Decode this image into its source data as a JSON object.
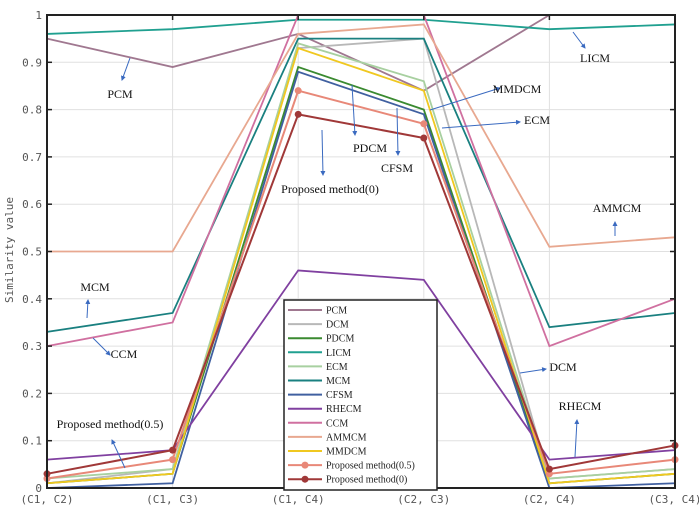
{
  "chart_data": {
    "type": "line",
    "title": "",
    "xlabel": "",
    "ylabel": "Similarity value",
    "categories": [
      "(C1, C2)",
      "(C1, C3)",
      "(C1, C4)",
      "(C2, C3)",
      "(C2, C4)",
      "(C3, C4)"
    ],
    "ylim": [
      0,
      1
    ],
    "yticks": [
      "0",
      "0.1",
      "0.2",
      "0.3",
      "0.4",
      "0.5",
      "0.6",
      "0.7",
      "0.8",
      "0.9",
      "1"
    ],
    "grid": true,
    "legend_placement": "bottom-center",
    "series": [
      {
        "name": "PCM",
        "color": "#a07890",
        "marker": false,
        "values": [
          0.95,
          0.89,
          0.96,
          0.84,
          1.0,
          1.0
        ]
      },
      {
        "name": "DCM",
        "color": "#b8b8b8",
        "marker": false,
        "values": [
          0.01,
          0.04,
          0.93,
          0.95,
          0.02,
          0.04
        ]
      },
      {
        "name": "PDCM",
        "color": "#3a8a30",
        "marker": false,
        "values": [
          0.01,
          0.03,
          0.89,
          0.8,
          0.01,
          0.03
        ]
      },
      {
        "name": "LICM",
        "color": "#20a090",
        "marker": false,
        "values": [
          0.96,
          0.97,
          0.99,
          0.99,
          0.97,
          0.98
        ]
      },
      {
        "name": "ECM",
        "color": "#a8d0a0",
        "marker": false,
        "values": [
          0.02,
          0.04,
          0.94,
          0.86,
          0.02,
          0.04
        ]
      },
      {
        "name": "MCM",
        "color": "#1a8080",
        "marker": false,
        "values": [
          0.33,
          0.37,
          0.95,
          0.95,
          0.34,
          0.37
        ]
      },
      {
        "name": "CFSM",
        "color": "#4060a0",
        "marker": false,
        "values": [
          0.0,
          0.01,
          0.88,
          0.79,
          0.0,
          0.01
        ]
      },
      {
        "name": "RHECM",
        "color": "#8040a0",
        "marker": false,
        "values": [
          0.06,
          0.08,
          0.46,
          0.44,
          0.06,
          0.08
        ]
      },
      {
        "name": "CCM",
        "color": "#d070a0",
        "marker": false,
        "values": [
          0.3,
          0.35,
          1.0,
          1.0,
          0.3,
          0.4
        ]
      },
      {
        "name": "AMMCM",
        "color": "#e8a890",
        "marker": false,
        "values": [
          0.5,
          0.5,
          0.96,
          0.98,
          0.51,
          0.53
        ]
      },
      {
        "name": "MMDCM",
        "color": "#f0c820",
        "marker": false,
        "values": [
          0.01,
          0.03,
          0.93,
          0.84,
          0.01,
          0.03
        ]
      },
      {
        "name": "Proposed method(0.5)",
        "color": "#e88878",
        "marker": true,
        "values": [
          0.02,
          0.06,
          0.84,
          0.77,
          0.03,
          0.06
        ]
      },
      {
        "name": "Proposed method(0)",
        "color": "#a03838",
        "marker": true,
        "values": [
          0.03,
          0.08,
          0.79,
          0.74,
          0.04,
          0.09
        ]
      }
    ],
    "annotations": [
      "PCM",
      "LICM",
      "MMDCM",
      "ECM",
      "PDCM",
      "CFSM",
      "Proposed method(0)",
      "AMMCM",
      "MCM",
      "CCM",
      "DCM",
      "RHECM",
      "Proposed method(0.5)"
    ],
    "annotation_arrow_color": "#3a6ac0"
  }
}
